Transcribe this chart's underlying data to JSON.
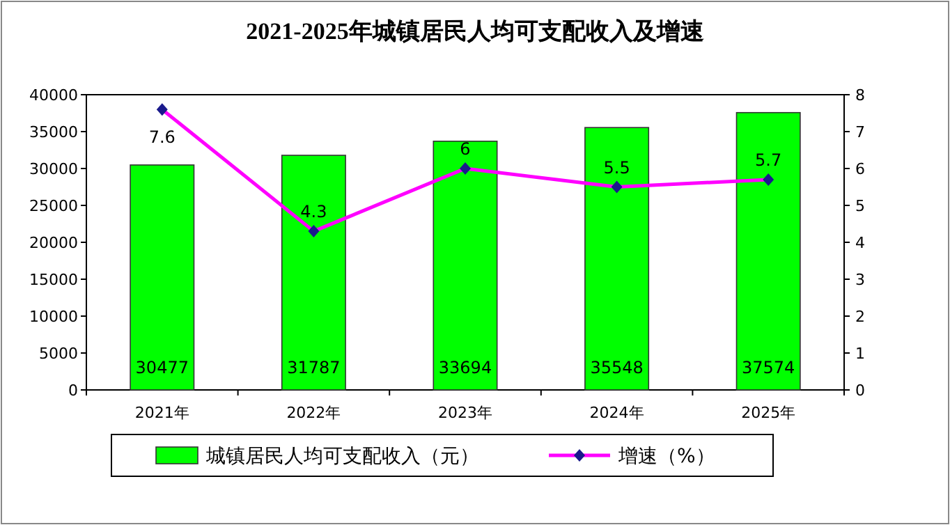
{
  "chart_data": {
    "type": "bar",
    "title": "2021-2025年城镇居民人均可支配收入及增速",
    "categories": [
      "2021年",
      "2022年",
      "2023年",
      "2024年",
      "2025年"
    ],
    "series": [
      {
        "name": "城镇居民人均可支配收入（元）",
        "color": "#00ff00",
        "values": [
          30477,
          31787,
          33694,
          35548,
          37574
        ]
      },
      {
        "name": "增速（%）",
        "type": "line",
        "axis": "y2",
        "color": "#ff00ff",
        "marker": "diamond",
        "values": [
          7.6,
          4.3,
          6,
          5.5,
          5.7
        ]
      }
    ],
    "ylim": [
      0,
      40000
    ],
    "yticks": [
      0,
      5000,
      10000,
      15000,
      20000,
      25000,
      30000,
      35000,
      40000
    ],
    "y2lim": [
      0,
      8
    ],
    "y2ticks": [
      0,
      1,
      2,
      3,
      4,
      5,
      6,
      7,
      8
    ],
    "legend": "bottom",
    "data_labels": true
  }
}
